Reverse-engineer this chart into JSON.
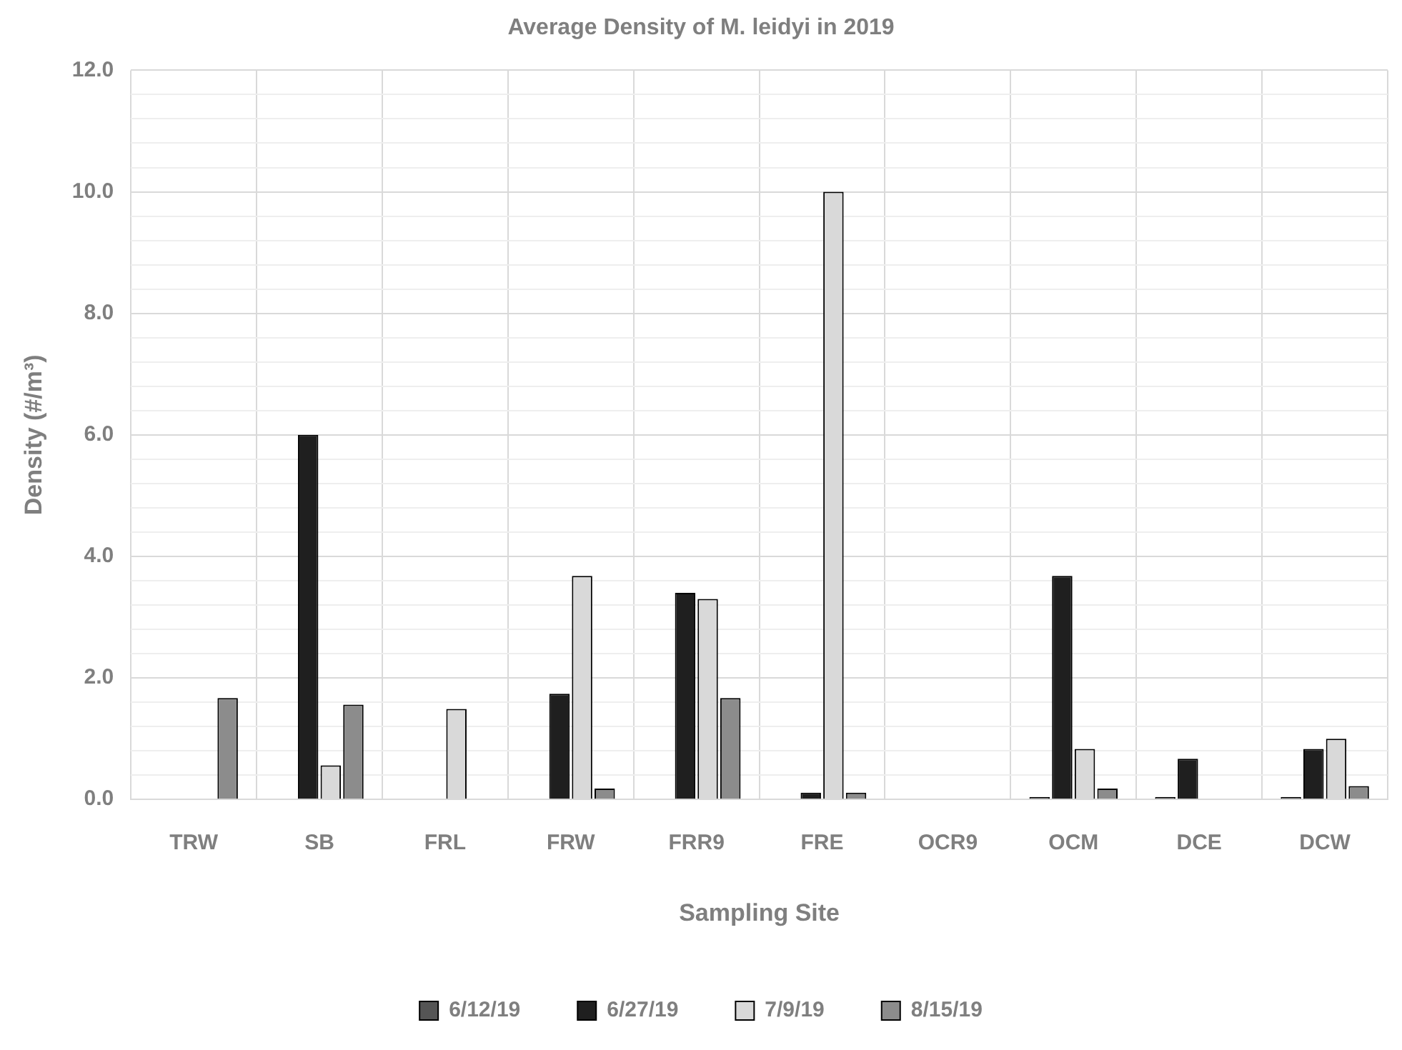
{
  "chart_data": {
    "type": "bar",
    "title": "Average Density of M. leidyi in 2019",
    "xlabel": "Sampling Site",
    "ylabel": "Density (#/m³)",
    "categories": [
      "TRW",
      "SB",
      "FRL",
      "FRW",
      "FRR9",
      "FRE",
      "OCR9",
      "OCM",
      "DCE",
      "DCW"
    ],
    "series": [
      {
        "name": "6/12/19",
        "color": "#555555",
        "values": [
          null,
          null,
          null,
          null,
          null,
          null,
          null,
          0.04,
          0.04,
          0.04
        ]
      },
      {
        "name": "6/27/19",
        "color": "#1f1f1f",
        "values": [
          null,
          6.0,
          null,
          1.74,
          3.4,
          0.11,
          null,
          3.68,
          0.67,
          0.83
        ]
      },
      {
        "name": "7/9/19",
        "color": "#d9d9d9",
        "values": [
          null,
          0.56,
          1.49,
          3.68,
          3.3,
          10.0,
          null,
          0.83,
          null,
          1.0
        ]
      },
      {
        "name": "8/15/19",
        "color": "#8c8c8c",
        "values": [
          1.67,
          1.56,
          null,
          0.18,
          1.67,
          0.11,
          null,
          0.18,
          null,
          0.22
        ]
      }
    ],
    "ylim": [
      0,
      12
    ],
    "yticks": [
      {
        "value": 0,
        "label": "0.0"
      },
      {
        "value": 0.4,
        "label": null
      },
      {
        "value": 0.8,
        "label": null
      },
      {
        "value": 1.2,
        "label": null
      },
      {
        "value": 1.6,
        "label": null
      },
      {
        "value": 2,
        "label": "2.0"
      },
      {
        "value": 2.4,
        "label": null
      },
      {
        "value": 2.8,
        "label": null
      },
      {
        "value": 3.2,
        "label": null
      },
      {
        "value": 3.6,
        "label": null
      },
      {
        "value": 4,
        "label": "4.0"
      },
      {
        "value": 4.4,
        "label": null
      },
      {
        "value": 4.8,
        "label": null
      },
      {
        "value": 5.2,
        "label": null
      },
      {
        "value": 5.6,
        "label": null
      },
      {
        "value": 6,
        "label": "6.0"
      },
      {
        "value": 6.4,
        "label": null
      },
      {
        "value": 6.8,
        "label": null
      },
      {
        "value": 7.2,
        "label": null
      },
      {
        "value": 7.6,
        "label": null
      },
      {
        "value": 8,
        "label": "8.0"
      },
      {
        "value": 8.4,
        "label": null
      },
      {
        "value": 8.8,
        "label": null
      },
      {
        "value": 9.2,
        "label": null
      },
      {
        "value": 9.6,
        "label": null
      },
      {
        "value": 10,
        "label": "10.0"
      },
      {
        "value": 10.4,
        "label": null
      },
      {
        "value": 10.8,
        "label": null
      },
      {
        "value": 11.2,
        "label": null
      },
      {
        "value": 11.6,
        "label": null
      },
      {
        "value": 12,
        "label": "12.0"
      }
    ],
    "grid": true,
    "legend": "bottom"
  }
}
